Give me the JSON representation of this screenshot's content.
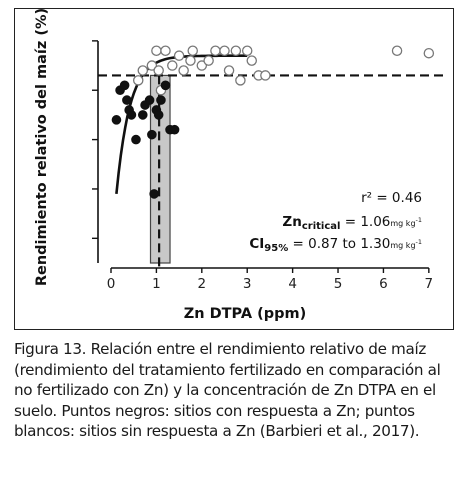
{
  "chart_data": {
    "type": "scatter",
    "xlabel": "Zn DTPA (ppm)",
    "ylabel": "Rendimiento relativo del maíz (%)",
    "xlim": [
      0,
      7.4
    ],
    "ylim": [
      55,
      102
    ],
    "x_ticks": [
      "0",
      "1",
      "2",
      "3",
      "4",
      "5",
      "6",
      "7"
    ],
    "grid": false,
    "series": [
      {
        "values": [
          {
            "x": 0.12,
            "y": 84
          },
          {
            "x": 0.2,
            "y": 90
          },
          {
            "x": 0.3,
            "y": 91
          },
          {
            "x": 0.35,
            "y": 88
          },
          {
            "x": 0.4,
            "y": 86
          },
          {
            "x": 0.45,
            "y": 85
          },
          {
            "x": 0.55,
            "y": 80
          },
          {
            "x": 0.7,
            "y": 85
          },
          {
            "x": 0.75,
            "y": 87
          },
          {
            "x": 0.85,
            "y": 88
          },
          {
            "x": 0.9,
            "y": 81
          },
          {
            "x": 0.95,
            "y": 69
          },
          {
            "x": 1.0,
            "y": 86
          },
          {
            "x": 1.05,
            "y": 85
          },
          {
            "x": 1.1,
            "y": 88
          },
          {
            "x": 1.2,
            "y": 91
          },
          {
            "x": 1.3,
            "y": 82
          },
          {
            "x": 1.4,
            "y": 82
          }
        ]
      },
      {
        "values": [
          {
            "x": 0.6,
            "y": 92
          },
          {
            "x": 0.7,
            "y": 94
          },
          {
            "x": 0.9,
            "y": 95
          },
          {
            "x": 1.0,
            "y": 98
          },
          {
            "x": 1.05,
            "y": 94
          },
          {
            "x": 1.1,
            "y": 90
          },
          {
            "x": 1.2,
            "y": 98
          },
          {
            "x": 1.35,
            "y": 95
          },
          {
            "x": 1.5,
            "y": 97
          },
          {
            "x": 1.6,
            "y": 94
          },
          {
            "x": 1.75,
            "y": 96
          },
          {
            "x": 1.8,
            "y": 98
          },
          {
            "x": 2.0,
            "y": 95
          },
          {
            "x": 2.15,
            "y": 96
          },
          {
            "x": 2.3,
            "y": 98
          },
          {
            "x": 2.5,
            "y": 98
          },
          {
            "x": 2.6,
            "y": 94
          },
          {
            "x": 2.75,
            "y": 98
          },
          {
            "x": 2.85,
            "y": 92
          },
          {
            "x": 3.0,
            "y": 98
          },
          {
            "x": 3.1,
            "y": 96
          },
          {
            "x": 3.25,
            "y": 93
          },
          {
            "x": 3.4,
            "y": 93
          },
          {
            "x": 6.3,
            "y": 98
          },
          {
            "x": 7.0,
            "y": 97.5
          }
        ]
      }
    ],
    "fit_curve": {
      "plateau": 97,
      "start_y": 69,
      "x_start": 0.12,
      "x_end": 3.0
    },
    "critical_line": {
      "x": 1.06,
      "y": 93
    },
    "ci_band": [
      0.87,
      1.3
    ],
    "annotations": {
      "r2": "r² = 0.46",
      "zn_critical_label": "Zn",
      "zn_critical_sub": "critical",
      "zn_critical_value": " = 1.06",
      "zn_critical_unit": "mg kg",
      "ci_label": "CI",
      "ci_sub": "95%",
      "ci_value": " = 0.87 to 1.30",
      "ci_unit": "mg kg",
      "unit_exp": "-1"
    }
  },
  "caption": {
    "label": "Figura 13",
    "text": ". Relación entre el rendimiento relativo de maíz (rendimiento del tratamiento fertilizado en comparación al no fertilizado con Zn) y la concentración de Zn DTPA en el suelo. Puntos negros: sitios con respuesta a Zn; puntos blancos: sitios sin respuesta a Zn (Barbieri et al., 2017)."
  }
}
